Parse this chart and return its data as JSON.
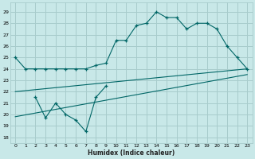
{
  "xlabel": "Humidex (Indice chaleur)",
  "bg_color": "#c8e8e8",
  "grid_color": "#a8cccc",
  "line_color": "#006666",
  "x_ticks": [
    0,
    1,
    2,
    3,
    4,
    5,
    6,
    7,
    8,
    9,
    10,
    11,
    12,
    13,
    14,
    15,
    16,
    17,
    18,
    19,
    20,
    21,
    22,
    23
  ],
  "y_ticks": [
    18,
    19,
    20,
    21,
    22,
    23,
    24,
    25,
    26,
    27,
    28,
    29
  ],
  "xlim": [
    -0.5,
    23.5
  ],
  "ylim": [
    17.5,
    29.8
  ],
  "series1_x": [
    0,
    1,
    2,
    3,
    4,
    5,
    6,
    7,
    8,
    9,
    10,
    11,
    12,
    13,
    14,
    15,
    16,
    17,
    18,
    19,
    20,
    21,
    22,
    23
  ],
  "series1_y": [
    25,
    24,
    24,
    24,
    24,
    24,
    24,
    24,
    24.3,
    24.5,
    26.5,
    26.5,
    27.8,
    28.0,
    29.0,
    28.5,
    28.5,
    27.5,
    28.0,
    28.0,
    27.5,
    26.0,
    25.0,
    24.0
  ],
  "series2_x": [
    2,
    3,
    4,
    5,
    6,
    7,
    8,
    9
  ],
  "series2_y": [
    21.5,
    19.7,
    21.0,
    20.0,
    19.5,
    18.5,
    21.5,
    22.5
  ],
  "trend1_x": [
    0,
    23
  ],
  "trend1_y": [
    22.0,
    24.0
  ],
  "trend2_x": [
    0,
    23
  ],
  "trend2_y": [
    19.8,
    23.5
  ]
}
